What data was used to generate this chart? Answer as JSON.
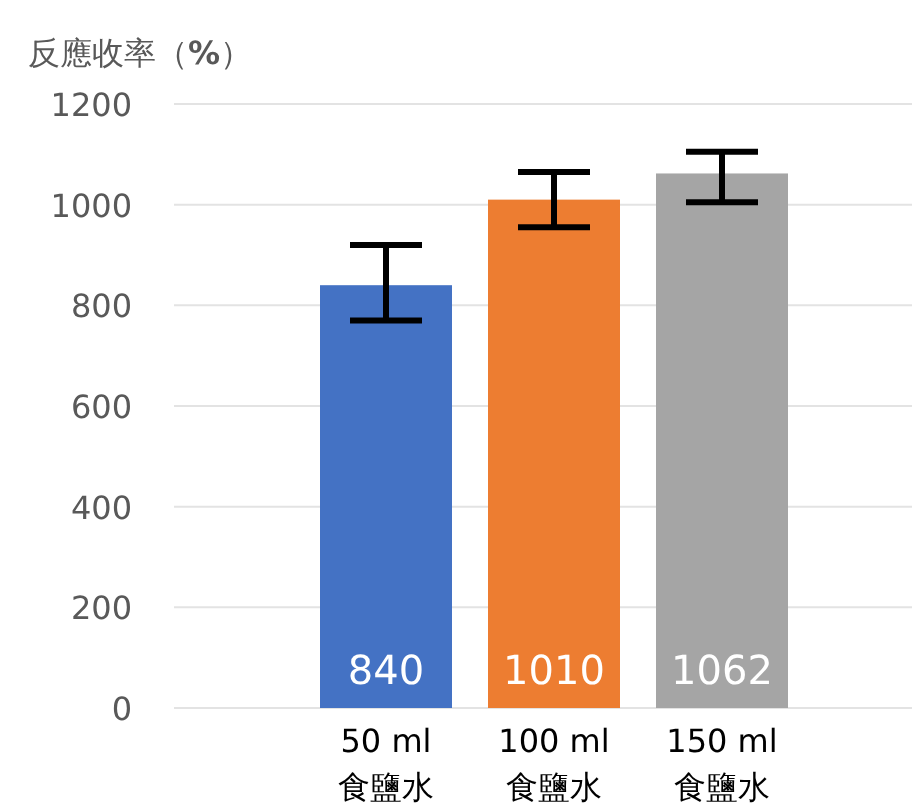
{
  "chart_data": {
    "type": "bar",
    "ylabel": "反應收率（**%**）",
    "categories": [
      "50 ml\n食鹽水",
      "100 ml\n食鹽水",
      "150 ml\n食鹽水"
    ],
    "values": [
      840,
      1010,
      1062
    ],
    "colors": [
      "#4472c4",
      "#ed7d31",
      "#a5a5a5"
    ],
    "errors": [
      [
        770,
        920
      ],
      [
        955,
        1065
      ],
      [
        1005,
        1105
      ]
    ],
    "data_labels": true,
    "ylim": [
      0,
      1200
    ],
    "yticks": [
      0,
      200,
      400,
      600,
      800,
      1000,
      1200
    ],
    "grid": "y"
  }
}
